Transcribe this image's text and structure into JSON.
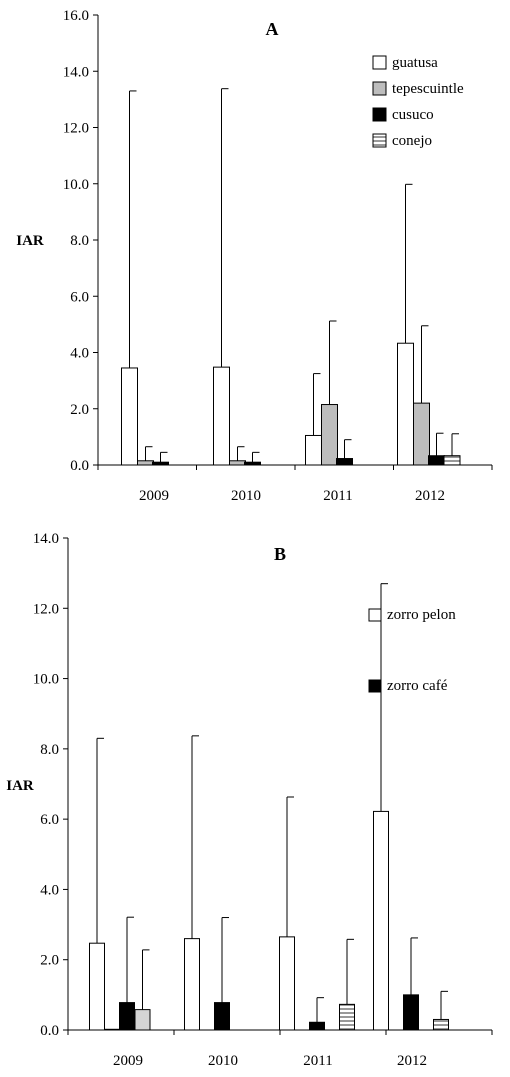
{
  "chart_data": [
    {
      "type": "bar",
      "panel_label": "A",
      "ylabel": "IAR",
      "xlabel": "",
      "ylim": [
        0,
        16
      ],
      "yticks": [
        "0.0",
        "2.0",
        "4.0",
        "6.0",
        "8.0",
        "10.0",
        "12.0",
        "14.0",
        "16.0"
      ],
      "categories": [
        "2009",
        "2010",
        "2011",
        "2012"
      ],
      "legend_position": "top-right",
      "series": [
        {
          "name": "guatusa",
          "fill": "white",
          "values": [
            3.45,
            3.48,
            1.05,
            4.33
          ],
          "error": [
            9.85,
            9.9,
            2.2,
            5.65
          ]
        },
        {
          "name": "tepescuintle",
          "fill": "gray",
          "values": [
            0.15,
            0.15,
            2.15,
            2.2
          ],
          "error": [
            0.5,
            0.5,
            2.97,
            2.75
          ]
        },
        {
          "name": "cusuco",
          "fill": "black",
          "values": [
            0.1,
            0.1,
            0.23,
            0.33
          ],
          "error": [
            0.35,
            0.35,
            0.67,
            0.8
          ]
        },
        {
          "name": "conejo",
          "fill": "hatched",
          "values": [
            0,
            0,
            0,
            0.33
          ],
          "error": [
            0,
            0,
            0,
            0.78
          ]
        }
      ]
    },
    {
      "type": "bar",
      "panel_label": "B",
      "ylabel": "IAR",
      "xlabel": "",
      "ylim": [
        0,
        14
      ],
      "yticks": [
        "0.0",
        "2.0",
        "4.0",
        "6.0",
        "8.0",
        "10.0",
        "12.0",
        "14.0"
      ],
      "categories": [
        "2009",
        "2010",
        "2011",
        "2012"
      ],
      "legend_position": "top-right",
      "series": [
        {
          "name": "zorro pelon",
          "fill": "white",
          "values": [
            2.47,
            2.6,
            2.65,
            6.22
          ],
          "error": [
            5.83,
            5.77,
            3.98,
            6.48
          ]
        },
        {
          "name": "",
          "fill": "gray",
          "values": [
            0.02,
            0,
            0,
            0
          ],
          "error": [
            0,
            0,
            0,
            0
          ]
        },
        {
          "name": "zorro café",
          "fill": "black",
          "values": [
            0.78,
            0.78,
            0.22,
            1.0
          ],
          "error": [
            2.43,
            2.42,
            0.7,
            1.62
          ]
        },
        {
          "name": "",
          "fill": "lightgray",
          "values": [
            0.58,
            0,
            0,
            0
          ],
          "error": [
            1.7,
            0,
            0,
            0
          ]
        },
        {
          "name": "",
          "fill": "hatched",
          "values": [
            0,
            0,
            0.73,
            0.3
          ],
          "error": [
            0,
            0,
            1.85,
            0.8
          ]
        }
      ]
    }
  ]
}
